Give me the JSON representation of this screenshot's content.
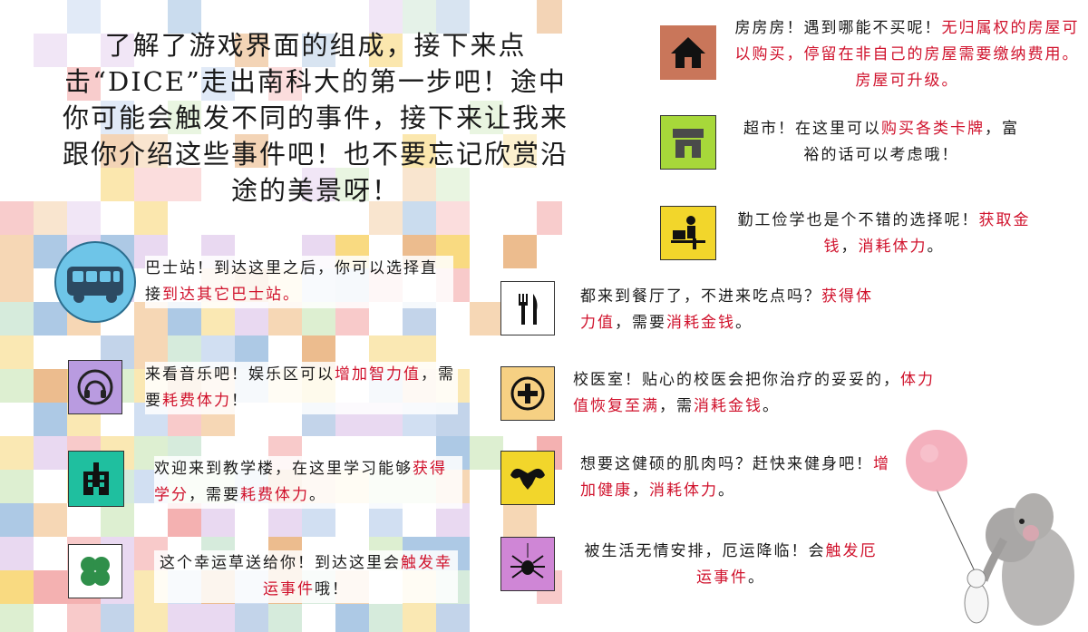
{
  "intro": {
    "lines": [
      "了解了游戏界面的组成，接下来点",
      "击“DICE”走出南科大的第一步吧！途中",
      "你可能会触发不同的事件，接下来让我来",
      "跟你介绍这些事件吧！也不要忘记欣赏沿",
      "途的美景呀！"
    ]
  },
  "events": {
    "bus": {
      "icon": "bus-icon",
      "color": "#6ec5e8",
      "text_black": "巴士站！到达这里之后，你可以选择直接",
      "text_red": "到达其它巴士站。"
    },
    "music": {
      "icon": "headphones-icon",
      "color": "#b99be0",
      "text_black_1": "来看音乐吧！娱乐区可以",
      "text_red_1": "增加智力值",
      "text_black_2": "，需要",
      "text_red_2": "耗费体力",
      "text_black_3": "！"
    },
    "school": {
      "icon": "school-building-icon",
      "color": "#1fbf9f",
      "text_black_1": "欢迎来到教学楼，在这里学习能够",
      "text_red_1": "获得学分",
      "text_black_2": "，需要",
      "text_red_2": "耗费体力",
      "text_black_3": "。"
    },
    "luck": {
      "icon": "clover-icon",
      "color": "#ffffff",
      "text_black_1": "这个幸运草送给你！到达这里会",
      "text_red_1": "触发幸运事件",
      "text_black_2": "哦！"
    },
    "house": {
      "icon": "house-icon",
      "color": "#c9765a",
      "text_black_1": "房房房！遇到哪能不买呢！",
      "text_red_1": "无归属权的房屋可以购买，停留在非自己的房屋需要缴纳费用。房屋可升级。"
    },
    "shop": {
      "icon": "store-icon",
      "color": "#a7d83a",
      "text_black_1": "超市！在这里可以",
      "text_red_1": "购买各类卡牌",
      "text_black_2": "，富裕的话可以考虑哦！"
    },
    "work": {
      "icon": "work-study-icon",
      "color": "#f2d62b",
      "text_black_1": "勤工俭学也是个不错的选择呢！",
      "text_red_1": "获取金钱",
      "text_black_2": "，",
      "text_red_2": "消耗体力",
      "text_black_3": "。"
    },
    "food": {
      "icon": "fork-knife-icon",
      "color": "#ffffff",
      "text_black_1": "都来到餐厅了，不进来吃点吗？",
      "text_red_1": "获得体力值",
      "text_black_2": "，需要",
      "text_red_2": "消耗金钱",
      "text_black_3": "。"
    },
    "clinic": {
      "icon": "medical-cross-icon",
      "color": "#f6d083",
      "text_black_1": "校医室！贴心的校医会把你治疗的妥妥的，",
      "text_red_1": "体力值恢复至满",
      "text_black_2": "，需",
      "text_red_2": "消耗金钱",
      "text_black_3": "。"
    },
    "gym": {
      "icon": "muscle-icon",
      "color": "#f2d62b",
      "text_black_1": "想要这健硕的肌肉吗？赶快来健身吧！",
      "text_red_1": "增加健康",
      "text_black_2": "，",
      "text_red_2": "消耗体力",
      "text_black_3": "。"
    },
    "misfortune": {
      "icon": "spider-icon",
      "color": "#cf86d6",
      "text_black_1": "被生活无情安排，厄运降临！会",
      "text_red_1": "触发厄运事件",
      "text_black_2": "。"
    }
  },
  "decoration": {
    "illustration": "elephant-with-balloon-illustration"
  }
}
